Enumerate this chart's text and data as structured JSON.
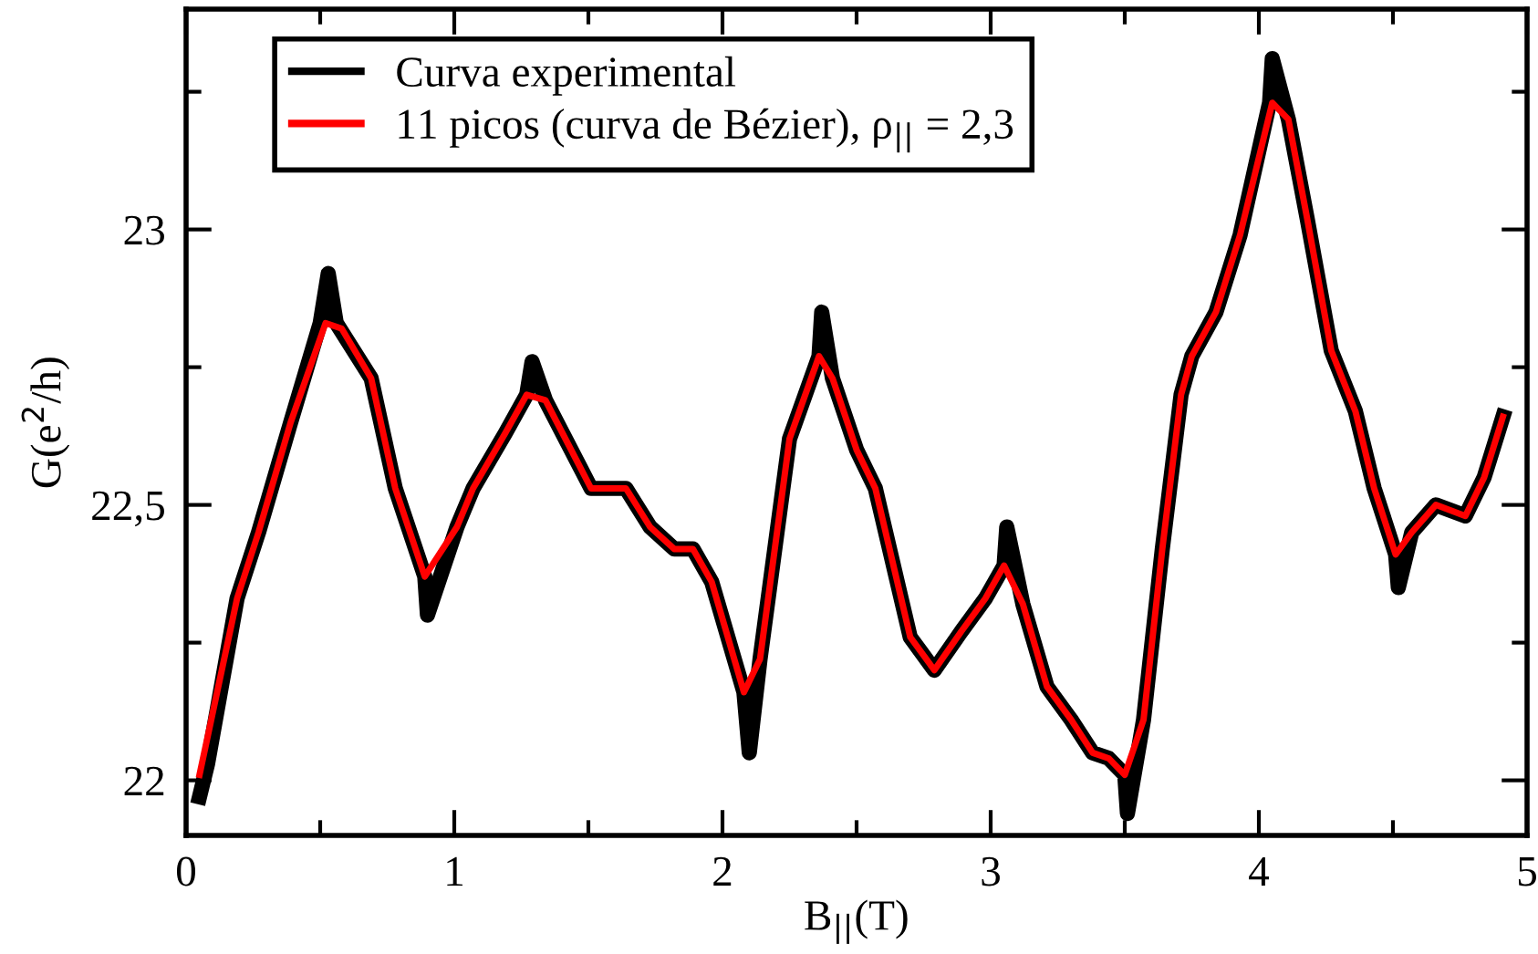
{
  "chart_data": {
    "type": "line",
    "xlabel": "B$_{||}$(T)",
    "ylabel": "G(e$^{2}$/h)",
    "xlim": [
      0,
      5
    ],
    "ylim": [
      21.9,
      23.4
    ],
    "xticks": [
      0,
      {
        "value": 0.5,
        "label": null
      },
      1,
      {
        "value": 1.5,
        "label": null
      },
      2,
      {
        "value": 2.5,
        "label": null
      },
      3,
      {
        "value": 3.5,
        "label": null
      },
      4,
      {
        "value": 4.5,
        "label": null
      },
      5
    ],
    "yticks": [
      {
        "value": 22,
        "label": "22"
      },
      {
        "value": 22.25,
        "label": null
      },
      {
        "value": 22.5,
        "label": "22,5"
      },
      {
        "value": 22.75,
        "label": null
      },
      {
        "value": 23,
        "label": "23"
      },
      {
        "value": 23.25,
        "label": null
      }
    ],
    "grid": false,
    "legend": "top left",
    "marker": "none",
    "line_style": "solid",
    "series": [
      {
        "name": "Curva experimental",
        "color": "#000000",
        "x": [
          0.05,
          0.08,
          0.19,
          0.27,
          0.39,
          0.5,
          0.53,
          0.56,
          0.69,
          0.78,
          0.89,
          0.9,
          1.01,
          1.07,
          1.19,
          1.27,
          1.29,
          1.34,
          1.51,
          1.64,
          1.73,
          1.82,
          1.89,
          1.96,
          2.08,
          2.1,
          2.14,
          2.25,
          2.36,
          2.37,
          2.41,
          2.5,
          2.57,
          2.7,
          2.79,
          2.89,
          2.98,
          3.05,
          3.06,
          3.12,
          3.21,
          3.3,
          3.38,
          3.44,
          3.5,
          3.51,
          3.57,
          3.64,
          3.71,
          3.75,
          3.84,
          3.93,
          4.04,
          4.05,
          4.11,
          4.18,
          4.27,
          4.36,
          4.43,
          4.51,
          4.52,
          4.57,
          4.66,
          4.77,
          4.84,
          4.91
        ],
        "values": [
          21.97,
          22.03,
          22.33,
          22.45,
          22.65,
          22.83,
          22.92,
          22.83,
          22.73,
          22.53,
          22.37,
          22.3,
          22.46,
          22.53,
          22.63,
          22.7,
          22.76,
          22.69,
          22.53,
          22.53,
          22.46,
          22.42,
          22.42,
          22.36,
          22.16,
          22.05,
          22.22,
          22.62,
          22.77,
          22.85,
          22.73,
          22.6,
          22.53,
          22.26,
          22.2,
          22.27,
          22.33,
          22.39,
          22.46,
          22.32,
          22.17,
          22.11,
          22.05,
          22.04,
          22.01,
          21.94,
          22.11,
          22.42,
          22.7,
          22.77,
          22.85,
          22.99,
          23.23,
          23.31,
          23.2,
          23.02,
          22.78,
          22.67,
          22.53,
          22.41,
          22.35,
          22.45,
          22.5,
          22.48,
          22.55,
          22.66
        ]
      },
      {
        "name": "11 picos (curva de Bézier), ρ$_{||}$ = 2,3",
        "color": "#ff0000",
        "x": [
          0.05,
          0.19,
          0.27,
          0.39,
          0.52,
          0.58,
          0.69,
          0.78,
          0.89,
          1.01,
          1.07,
          1.19,
          1.27,
          1.34,
          1.51,
          1.64,
          1.73,
          1.82,
          1.89,
          1.96,
          2.08,
          2.14,
          2.25,
          2.36,
          2.41,
          2.5,
          2.57,
          2.7,
          2.79,
          2.89,
          2.98,
          3.05,
          3.12,
          3.21,
          3.3,
          3.38,
          3.44,
          3.5,
          3.57,
          3.64,
          3.71,
          3.75,
          3.84,
          3.93,
          4.05,
          4.11,
          4.18,
          4.27,
          4.36,
          4.43,
          4.51,
          4.57,
          4.66,
          4.77,
          4.84,
          4.91
        ],
        "values": [
          22.01,
          22.33,
          22.45,
          22.65,
          22.83,
          22.82,
          22.73,
          22.53,
          22.37,
          22.46,
          22.53,
          22.63,
          22.7,
          22.69,
          22.53,
          22.53,
          22.46,
          22.42,
          22.42,
          22.36,
          22.16,
          22.22,
          22.62,
          22.77,
          22.73,
          22.6,
          22.53,
          22.26,
          22.2,
          22.27,
          22.33,
          22.39,
          22.32,
          22.17,
          22.11,
          22.05,
          22.04,
          22.01,
          22.11,
          22.42,
          22.7,
          22.77,
          22.85,
          22.99,
          23.23,
          23.2,
          23.02,
          22.78,
          22.67,
          22.53,
          22.41,
          22.45,
          22.5,
          22.48,
          22.55,
          22.66
        ]
      }
    ]
  }
}
